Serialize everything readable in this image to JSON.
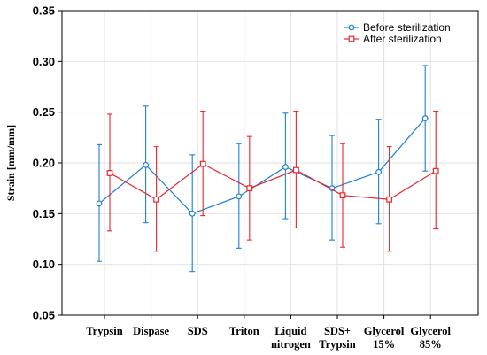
{
  "chart_data": {
    "type": "line",
    "ylabel": "Strain [mm/mm]",
    "ylim": [
      0.05,
      0.35
    ],
    "yticks": [
      "0.05",
      "0.10",
      "0.15",
      "0.20",
      "0.25",
      "0.30",
      "0.35"
    ],
    "grid": true,
    "legend_position": "top-right",
    "categories": [
      [
        "Trypsin"
      ],
      [
        "Dispase"
      ],
      [
        "SDS"
      ],
      [
        "Triton"
      ],
      [
        "Liquid",
        "nitrogen"
      ],
      [
        "SDS+",
        "Trypsin"
      ],
      [
        "Glycerol",
        "15%"
      ],
      [
        "Glycerol",
        "85%"
      ]
    ],
    "series": [
      {
        "name": "Before sterilization",
        "color": "#1f7fd6",
        "marker": "circle",
        "values": [
          0.16,
          0.198,
          0.15,
          0.167,
          0.196,
          0.175,
          0.191,
          0.244
        ],
        "err_low": [
          0.103,
          0.141,
          0.093,
          0.116,
          0.145,
          0.124,
          0.14,
          0.192
        ],
        "err_high": [
          0.218,
          0.256,
          0.208,
          0.219,
          0.249,
          0.227,
          0.243,
          0.296
        ]
      },
      {
        "name": "After sterilization",
        "color": "#e8262b",
        "marker": "square",
        "values": [
          0.19,
          0.164,
          0.199,
          0.175,
          0.193,
          0.168,
          0.164,
          0.192
        ],
        "err_low": [
          0.133,
          0.113,
          0.148,
          0.124,
          0.136,
          0.117,
          0.113,
          0.135
        ],
        "err_high": [
          0.248,
          0.216,
          0.251,
          0.226,
          0.251,
          0.219,
          0.216,
          0.251
        ]
      }
    ]
  }
}
